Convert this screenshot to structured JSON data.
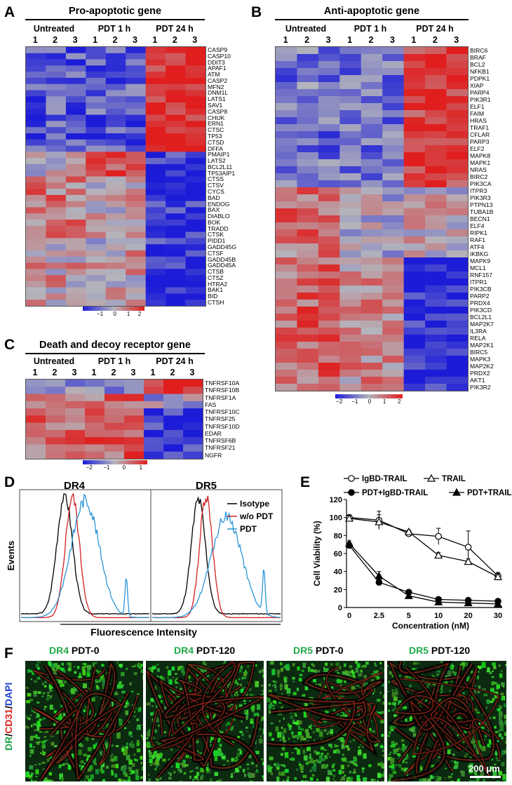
{
  "panels": {
    "A": {
      "letter": "A",
      "title": "Pro-apoptotic gene",
      "groups": [
        "Untreated",
        "PDT 1 h",
        "PDT 24 h"
      ],
      "reps": [
        "1",
        "2",
        "3",
        "1",
        "2",
        "3",
        "1",
        "2",
        "3"
      ],
      "genes": [
        "CASP9",
        "CASP10",
        "DDIT3",
        "APAF1",
        "ATM",
        "CASP2",
        "MFN2",
        "DNM1L",
        "LATS1",
        "SAV1",
        "CASP8",
        "CHUK",
        "ERN1",
        "CTSC",
        "TP53",
        "CTSD",
        "DFFA",
        "PMAIP1",
        "LATS2",
        "BCL2L11",
        "TP53AIP1",
        "CTSS",
        "CTSV",
        "CYCS",
        "BAD",
        "ENDOG",
        "BAX",
        "DIABLO",
        "BOK",
        "TRADD",
        "CTSK",
        "PIDD1",
        "GADD45G",
        "CTSF",
        "GADD45B",
        "GADD45A",
        "CTSB",
        "CTSZ",
        "HTRA2",
        "BAK1",
        "BID",
        "CTSH"
      ],
      "colorbar_ticks": [
        "−1",
        "0",
        "1",
        "2"
      ]
    },
    "B": {
      "letter": "B",
      "title": "Anti-apoptotic gene",
      "groups": [
        "Untreated",
        "PDT 1 h",
        "PDT 24 h"
      ],
      "reps": [
        "1",
        "2",
        "3",
        "1",
        "2",
        "3",
        "1",
        "2",
        "3"
      ],
      "genes": [
        "BIRC6",
        "BRAF",
        "BCL2",
        "NFKB1",
        "PDPK1",
        "XIAP",
        "PARP4",
        "PIK3R1",
        "ELF1",
        "FAIM",
        "HRAS",
        "TRAF1",
        "CFLAR",
        "PARP3",
        "ELF2",
        "MAPK8",
        "MAPK1",
        "NRAS",
        "BIRC2",
        "PIK3CA",
        "ITPR3",
        "PIK3R3",
        "PTPN13",
        "TUBA1B",
        "BECN1",
        "ELF4",
        "RIPK1",
        "RAF1",
        "ATF4",
        "IKBKG",
        "MAPK9",
        "MCL1",
        "RNF157",
        "ITPR1",
        "PIK3CB",
        "PARP2",
        "PRDX4",
        "PIK3CD",
        "BCL2L1",
        "MAP2K7",
        "IL3RA",
        "RELA",
        "MAP2K1",
        "BIRC5",
        "MAPK3",
        "MAP2K2",
        "PRDX2",
        "AKT1",
        "PIK3R2"
      ],
      "colorbar_ticks": [
        "−2",
        "−1",
        "0",
        "1",
        "2"
      ]
    },
    "C": {
      "letter": "C",
      "title": "Death and decoy receptor gene",
      "groups": [
        "Untreated",
        "PDT 1 h",
        "PDT 24 h"
      ],
      "reps": [
        "1",
        "2",
        "3",
        "1",
        "2",
        "3",
        "1",
        "2",
        "3"
      ],
      "genes": [
        "TNFRSF10A",
        "TNFRSF10B",
        "TNFRSF1A",
        "FAS",
        "TNFRSF10C",
        "TNFRSF25",
        "TNFRSF10D",
        "EDAR",
        "TNFRSF6B",
        "TNFRSF21",
        "NGFR"
      ],
      "colorbar_ticks": [
        "−2",
        "−1",
        "0",
        "1"
      ]
    },
    "D": {
      "letter": "D",
      "plots": [
        "DR4",
        "DR5"
      ],
      "ylabel": "Events",
      "xlabel": "Fluorescence Intensity",
      "legend": [
        "Isotype",
        "w/o PDT",
        "PDT"
      ]
    },
    "E": {
      "letter": "E",
      "legend": [
        "IgBD-TRAIL",
        "TRAIL",
        "PDT+IgBD-TRAIL",
        "PDT+TRAIL"
      ]
    },
    "F": {
      "letter": "F",
      "side_label_dr": "DR",
      "side_label_slash1": "/",
      "side_label_cd31": "CD31",
      "side_label_slash2": "/",
      "side_label_dapi": "DAPI",
      "images": [
        {
          "marker": "DR4",
          "cond": "PDT-0"
        },
        {
          "marker": "DR4",
          "cond": "PDT-120"
        },
        {
          "marker": "DR5",
          "cond": "PDT-0"
        },
        {
          "marker": "DR5",
          "cond": "PDT-120"
        }
      ],
      "scalebar": "200 μm"
    }
  },
  "colors": {
    "heat_low": "#1c1cd8",
    "heat_mid": "#b4b4bc",
    "heat_high": "#e01e1e",
    "isotype": "#000000",
    "wo_pdt": "#d42020",
    "pdt": "#2a95d8"
  },
  "chart_data": [
    {
      "type": "line",
      "title": "",
      "xlabel": "Concentration  (nM)",
      "ylabel": "Cell Viability (%)",
      "categories": [
        "0",
        "2.5",
        "5",
        "10",
        "20",
        "30"
      ],
      "ylim": [
        0,
        120
      ],
      "yticks": [
        0,
        20,
        40,
        60,
        80,
        100,
        120
      ],
      "series": [
        {
          "name": "IgBD-TRAIL",
          "marker": "open-circle",
          "values": [
            100,
            97,
            82,
            79,
            67,
            35
          ],
          "errors": [
            3,
            10,
            3,
            9,
            18,
            4
          ]
        },
        {
          "name": "TRAIL",
          "marker": "open-triangle",
          "values": [
            99,
            95,
            84,
            58,
            51,
            34
          ],
          "errors": [
            3,
            8,
            2,
            3,
            3,
            3
          ]
        },
        {
          "name": "PDT+IgBD-TRAIL",
          "marker": "filled-circle",
          "values": [
            69,
            28,
            17,
            9,
            8,
            7
          ],
          "errors": [
            3,
            3,
            2,
            2,
            1,
            1
          ]
        },
        {
          "name": "PDT+TRAIL",
          "marker": "filled-triangle",
          "values": [
            71,
            35,
            13,
            6,
            5,
            4
          ],
          "errors": [
            3,
            5,
            2,
            1,
            1,
            1
          ]
        }
      ]
    }
  ]
}
